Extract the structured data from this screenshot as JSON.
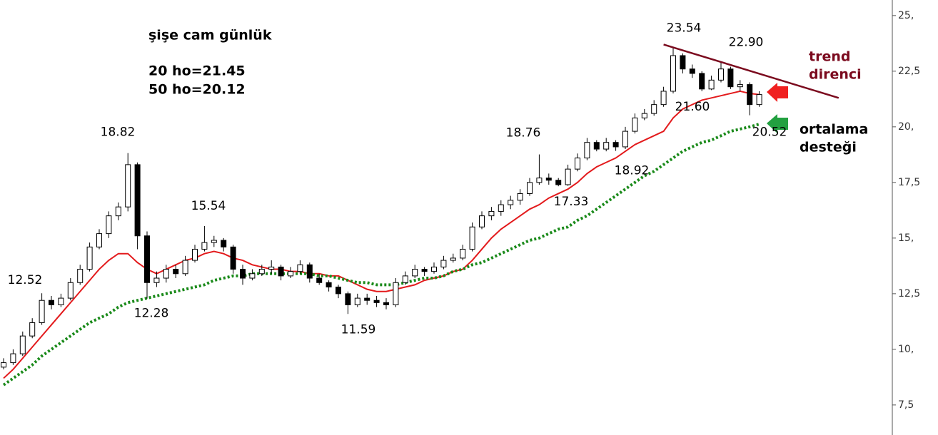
{
  "chart_data": {
    "type": "candlestick",
    "title": "şişe cam günlük",
    "ma_labels": [
      "20 ho=21.45",
      "50 ho=20.12"
    ],
    "trend_label": [
      "trend",
      "direnci"
    ],
    "support_label": [
      "ortalama",
      "desteği"
    ],
    "ylim": [
      6.15,
      25.7
    ],
    "yticks": [
      {
        "value": 25,
        "label": "25,"
      },
      {
        "value": 22.5,
        "label": "22,5"
      },
      {
        "value": 20,
        "label": "20,"
      },
      {
        "value": 17.5,
        "label": "17,5"
      },
      {
        "value": 15,
        "label": "15,"
      },
      {
        "value": 12.5,
        "label": "12,5"
      },
      {
        "value": 10,
        "label": "10,"
      },
      {
        "value": 7.5,
        "label": "7,5"
      }
    ],
    "ohlc": [
      [
        9.2,
        9.6,
        9.1,
        9.4
      ],
      [
        9.4,
        10.0,
        9.3,
        9.8
      ],
      [
        9.8,
        10.8,
        9.7,
        10.6
      ],
      [
        10.6,
        11.4,
        10.5,
        11.2
      ],
      [
        11.2,
        12.52,
        11.1,
        12.2
      ],
      [
        12.2,
        12.4,
        11.8,
        12.0
      ],
      [
        12.0,
        12.5,
        11.9,
        12.3
      ],
      [
        12.3,
        13.2,
        12.2,
        13.0
      ],
      [
        13.0,
        13.8,
        12.9,
        13.6
      ],
      [
        13.6,
        14.8,
        13.5,
        14.6
      ],
      [
        14.6,
        15.4,
        14.5,
        15.2
      ],
      [
        15.2,
        16.2,
        15.0,
        16.0
      ],
      [
        16.0,
        16.6,
        15.8,
        16.4
      ],
      [
        16.4,
        18.82,
        16.2,
        18.3
      ],
      [
        18.3,
        18.4,
        14.5,
        15.1
      ],
      [
        15.1,
        15.3,
        12.28,
        13.0
      ],
      [
        13.0,
        13.5,
        12.8,
        13.2
      ],
      [
        13.2,
        13.8,
        13.0,
        13.6
      ],
      [
        13.6,
        13.8,
        13.2,
        13.4
      ],
      [
        13.4,
        14.2,
        13.3,
        14.0
      ],
      [
        14.0,
        14.7,
        13.9,
        14.5
      ],
      [
        14.5,
        15.54,
        14.4,
        14.8
      ],
      [
        14.8,
        15.1,
        14.6,
        14.9
      ],
      [
        14.9,
        15.0,
        14.4,
        14.6
      ],
      [
        14.6,
        14.7,
        13.4,
        13.6
      ],
      [
        13.6,
        13.8,
        12.9,
        13.2
      ],
      [
        13.2,
        13.6,
        13.1,
        13.4
      ],
      [
        13.4,
        13.8,
        13.3,
        13.6
      ],
      [
        13.6,
        14.0,
        13.4,
        13.7
      ],
      [
        13.7,
        13.8,
        13.1,
        13.3
      ],
      [
        13.3,
        13.7,
        13.2,
        13.5
      ],
      [
        13.5,
        14.0,
        13.4,
        13.8
      ],
      [
        13.8,
        13.9,
        13.0,
        13.2
      ],
      [
        13.2,
        13.4,
        12.9,
        13.0
      ],
      [
        13.0,
        13.1,
        12.6,
        12.8
      ],
      [
        12.8,
        12.9,
        12.3,
        12.5
      ],
      [
        12.5,
        12.6,
        11.59,
        12.0
      ],
      [
        12.0,
        12.5,
        11.9,
        12.3
      ],
      [
        12.3,
        12.5,
        12.0,
        12.2
      ],
      [
        12.2,
        12.4,
        11.9,
        12.1
      ],
      [
        12.1,
        12.3,
        11.8,
        12.0
      ],
      [
        12.0,
        13.2,
        11.9,
        13.0
      ],
      [
        13.0,
        13.5,
        12.9,
        13.3
      ],
      [
        13.3,
        13.8,
        13.2,
        13.6
      ],
      [
        13.6,
        13.7,
        13.3,
        13.5
      ],
      [
        13.5,
        13.9,
        13.4,
        13.7
      ],
      [
        13.7,
        14.2,
        13.6,
        14.0
      ],
      [
        14.0,
        14.3,
        13.9,
        14.1
      ],
      [
        14.1,
        14.7,
        14.0,
        14.5
      ],
      [
        14.5,
        15.7,
        14.4,
        15.5
      ],
      [
        15.5,
        16.2,
        15.4,
        16.0
      ],
      [
        16.0,
        16.4,
        15.8,
        16.2
      ],
      [
        16.2,
        16.7,
        16.0,
        16.5
      ],
      [
        16.5,
        16.9,
        16.3,
        16.7
      ],
      [
        16.7,
        17.2,
        16.5,
        17.0
      ],
      [
        17.0,
        17.7,
        16.9,
        17.5
      ],
      [
        17.5,
        18.76,
        17.4,
        17.7
      ],
      [
        17.7,
        17.9,
        17.4,
        17.6
      ],
      [
        17.6,
        17.7,
        17.33,
        17.4
      ],
      [
        17.4,
        18.3,
        17.35,
        18.1
      ],
      [
        18.1,
        18.8,
        18.0,
        18.6
      ],
      [
        18.6,
        19.5,
        18.5,
        19.3
      ],
      [
        19.3,
        19.4,
        18.9,
        19.0
      ],
      [
        19.0,
        19.5,
        18.9,
        19.3
      ],
      [
        19.3,
        19.4,
        18.92,
        19.1
      ],
      [
        19.1,
        20.0,
        19.0,
        19.8
      ],
      [
        19.8,
        20.6,
        19.7,
        20.4
      ],
      [
        20.4,
        20.8,
        20.3,
        20.6
      ],
      [
        20.6,
        21.2,
        20.5,
        21.0
      ],
      [
        21.0,
        21.8,
        20.9,
        21.6
      ],
      [
        21.6,
        23.54,
        21.5,
        23.2
      ],
      [
        23.2,
        23.3,
        22.4,
        22.6
      ],
      [
        22.6,
        22.8,
        22.2,
        22.4
      ],
      [
        22.4,
        22.5,
        21.6,
        21.7
      ],
      [
        21.7,
        22.3,
        21.65,
        22.1
      ],
      [
        22.1,
        22.9,
        22.0,
        22.6
      ],
      [
        22.6,
        22.7,
        21.7,
        21.8
      ],
      [
        21.8,
        22.1,
        21.6,
        21.9
      ],
      [
        21.9,
        22.0,
        20.52,
        21.0
      ],
      [
        21.0,
        21.6,
        20.9,
        21.45
      ]
    ],
    "moving_averages": [
      {
        "color": "#e31a1c",
        "dotted": false,
        "values": [
          8.7,
          9.1,
          9.6,
          10.1,
          10.6,
          11.1,
          11.6,
          12.1,
          12.6,
          13.1,
          13.6,
          14.0,
          14.3,
          14.3,
          13.9,
          13.6,
          13.4,
          13.6,
          13.8,
          14.0,
          14.1,
          14.3,
          14.4,
          14.3,
          14.1,
          14.0,
          13.8,
          13.7,
          13.6,
          13.6,
          13.5,
          13.5,
          13.4,
          13.4,
          13.3,
          13.3,
          13.1,
          12.9,
          12.7,
          12.6,
          12.6,
          12.7,
          12.8,
          12.9,
          13.1,
          13.2,
          13.3,
          13.5,
          13.6,
          14.0,
          14.5,
          15.0,
          15.4,
          15.7,
          16.0,
          16.3,
          16.5,
          16.8,
          17.0,
          17.2,
          17.5,
          17.9,
          18.2,
          18.4,
          18.6,
          18.9,
          19.2,
          19.4,
          19.6,
          19.8,
          20.4,
          20.8,
          21.0,
          21.2,
          21.3,
          21.4,
          21.5,
          21.6,
          21.5,
          21.45
        ]
      },
      {
        "color": "#1a8a1a",
        "dotted": true,
        "values": [
          8.4,
          8.7,
          9.0,
          9.3,
          9.7,
          10.0,
          10.3,
          10.6,
          10.9,
          11.2,
          11.4,
          11.6,
          11.9,
          12.1,
          12.2,
          12.3,
          12.4,
          12.5,
          12.6,
          12.7,
          12.8,
          12.9,
          13.1,
          13.2,
          13.3,
          13.3,
          13.4,
          13.4,
          13.4,
          13.4,
          13.4,
          13.4,
          13.4,
          13.3,
          13.3,
          13.2,
          13.1,
          13.0,
          13.0,
          12.9,
          12.9,
          12.9,
          13.0,
          13.1,
          13.2,
          13.2,
          13.3,
          13.5,
          13.6,
          13.8,
          13.9,
          14.1,
          14.3,
          14.5,
          14.7,
          14.9,
          15.0,
          15.2,
          15.4,
          15.5,
          15.8,
          16.0,
          16.3,
          16.6,
          16.9,
          17.2,
          17.5,
          17.8,
          18.0,
          18.3,
          18.6,
          18.9,
          19.1,
          19.3,
          19.4,
          19.6,
          19.8,
          19.9,
          20.0,
          20.12
        ]
      }
    ],
    "trend_line": {
      "color": "#7b0a1e",
      "x": [
        69,
        87.3
      ],
      "y": [
        23.7,
        21.3
      ]
    },
    "price_labels": {
      "values": [
        23.54,
        22.9,
        21.6,
        20.52,
        18.76,
        18.92,
        17.33,
        18.82,
        15.54,
        12.52,
        12.28,
        11.59
      ],
      "value_labels": [
        "23.54",
        "22.90",
        "21.60",
        "20.52",
        "18.76",
        "18.92",
        "17.33",
        "18.82",
        "15.54",
        "12.52",
        "12.28",
        "11.59"
      ]
    }
  }
}
